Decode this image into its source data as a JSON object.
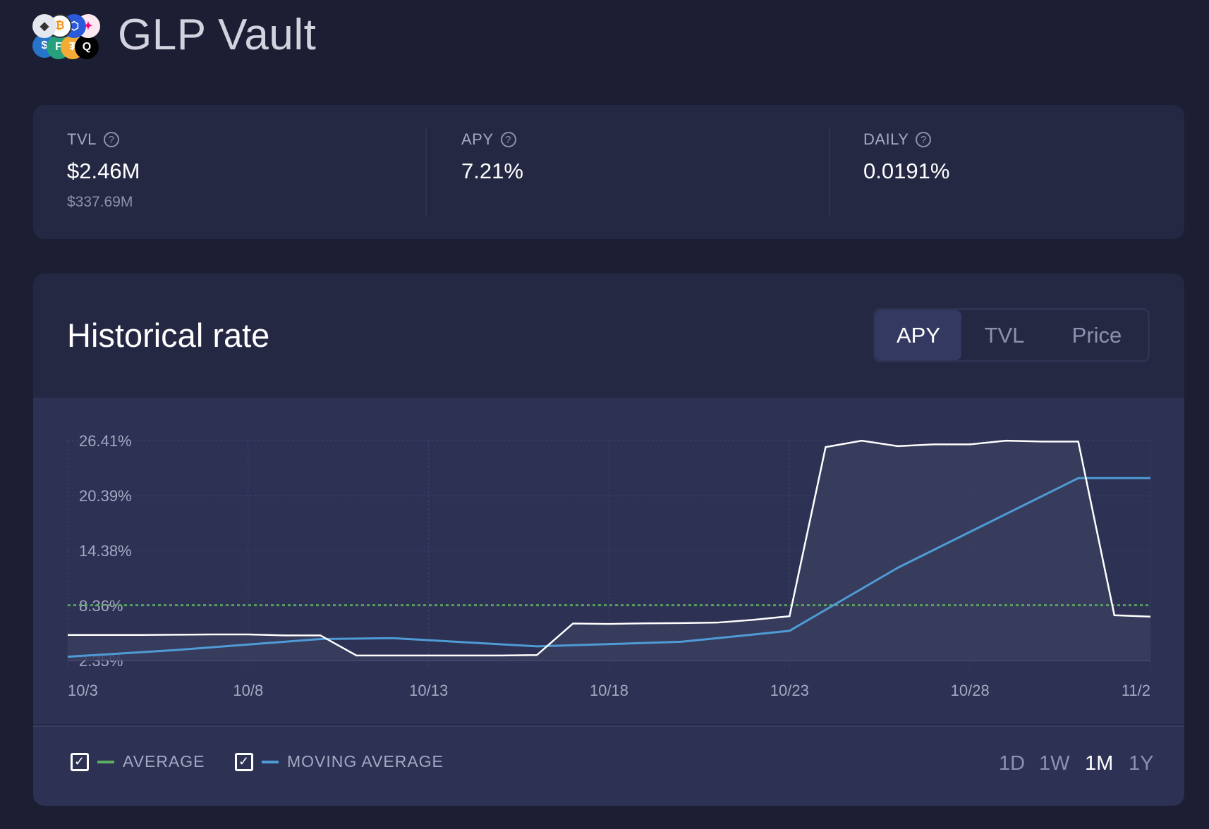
{
  "header": {
    "title": "GLP Vault",
    "logo_icons": [
      "eth-icon",
      "btc-icon",
      "link-icon",
      "uni-icon",
      "usdc-icon",
      "frax-icon",
      "dai-icon",
      "usdt-icon"
    ]
  },
  "stats": [
    {
      "label": "TVL",
      "value": "$2.46M",
      "sub": "$337.69M"
    },
    {
      "label": "APY",
      "value": "7.21%"
    },
    {
      "label": "DAILY",
      "value": "0.0191%"
    }
  ],
  "help_glyph": "?",
  "chart_section": {
    "title": "Historical rate",
    "tabs": [
      {
        "label": "APY",
        "active": true
      },
      {
        "label": "TVL",
        "active": false
      },
      {
        "label": "Price",
        "active": false
      }
    ],
    "legend": [
      {
        "label": "AVERAGE",
        "checked": true,
        "color": "#5bb15e"
      },
      {
        "label": "MOVING AVERAGE",
        "checked": true,
        "color": "#4f9bd6"
      }
    ],
    "ranges": [
      {
        "label": "1D"
      },
      {
        "label": "1W"
      },
      {
        "label": "1M",
        "active": true
      },
      {
        "label": "1Y"
      }
    ]
  },
  "chart_data": {
    "type": "area",
    "title": "Historical rate",
    "xlabel": "",
    "ylabel": "APY",
    "x_ticks": [
      "10/3",
      "10/8",
      "10/13",
      "10/18",
      "10/23",
      "10/28",
      "11/2"
    ],
    "y_ticks": [
      "26.41%",
      "20.39%",
      "14.38%",
      "8.36%",
      "2.35%"
    ],
    "ylim": [
      2.35,
      26.41
    ],
    "x_range_days": [
      0,
      30
    ],
    "series": [
      {
        "name": "APY",
        "color": "#ffffff",
        "values": [
          5.15,
          5.15,
          5.15,
          5.17,
          5.2,
          5.2,
          5.1,
          5.1,
          2.9,
          2.9,
          2.9,
          2.9,
          2.9,
          2.95,
          6.4,
          6.35,
          6.42,
          6.45,
          6.5,
          6.8,
          7.2,
          25.7,
          26.4,
          25.8,
          26.0,
          26.0,
          26.4,
          26.3,
          26.3,
          7.3,
          7.15
        ]
      },
      {
        "name": "MOVING AVERAGE",
        "color": "#4f9bd6",
        "points": [
          [
            0,
            2.76
          ],
          [
            3,
            3.5
          ],
          [
            7,
            4.7
          ],
          [
            9,
            4.8
          ],
          [
            13,
            3.9
          ],
          [
            17,
            4.4
          ],
          [
            20,
            5.6
          ],
          [
            23,
            12.5
          ],
          [
            28,
            22.3
          ],
          [
            30,
            22.3
          ]
        ]
      },
      {
        "name": "AVERAGE",
        "color": "#5bb15e",
        "value": 8.4
      }
    ],
    "grid": true
  }
}
